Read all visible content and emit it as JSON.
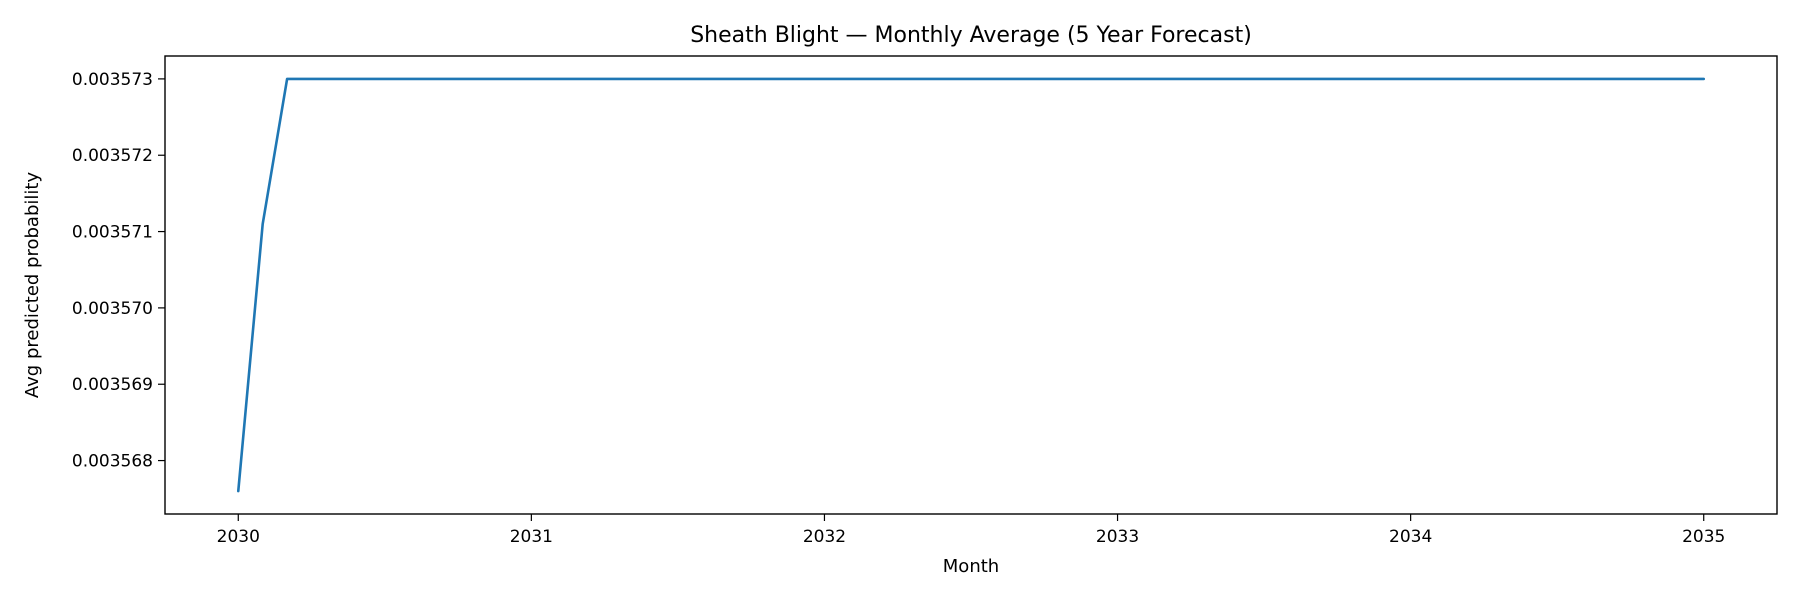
{
  "chart_data": {
    "type": "line",
    "title": "Sheath Blight — Monthly Average (5 Year Forecast)",
    "xlabel": "Month",
    "ylabel": "Avg predicted probability",
    "x_ticks": [
      "2030",
      "2031",
      "2032",
      "2033",
      "2034",
      "2035"
    ],
    "y_ticks": [
      "0.003568",
      "0.003569",
      "0.003570",
      "0.003571",
      "0.003572",
      "0.003573"
    ],
    "xlim": [
      2029.75,
      2035.25
    ],
    "ylim": [
      0.0035673,
      0.0035733
    ],
    "grid": false,
    "legend": "none",
    "series": [
      {
        "color": "#1f77b4",
        "x": [
          "2030-01",
          "2030-02",
          "2030-03",
          "2030-04",
          "2035-01"
        ],
        "y": [
          0.0035676,
          0.0035711,
          0.003573,
          0.003573,
          0.003573
        ]
      }
    ]
  }
}
